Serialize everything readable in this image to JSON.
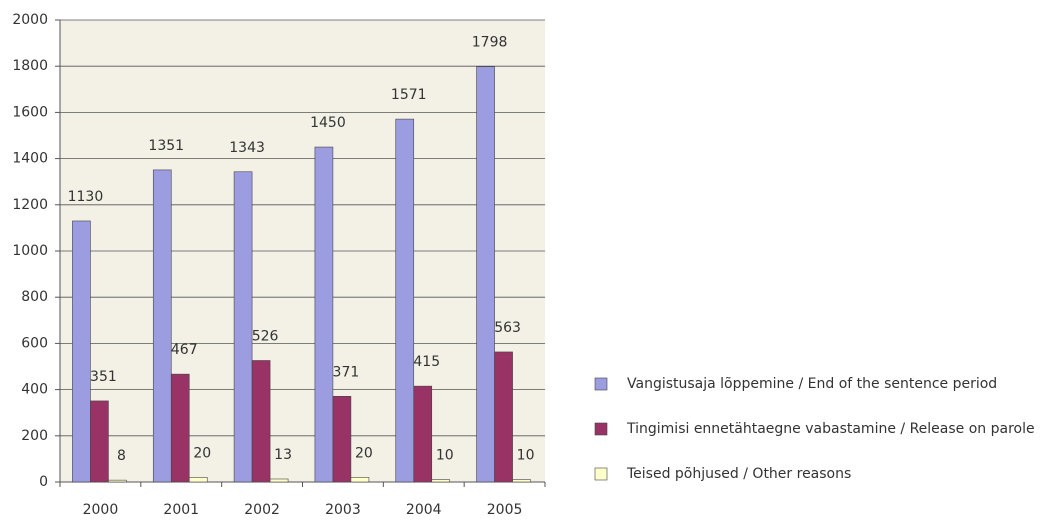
{
  "chart_data": {
    "type": "bar",
    "categories": [
      "2000",
      "2001",
      "2002",
      "2003",
      "2004",
      "2005"
    ],
    "series": [
      {
        "name": "Vangistusaja lõppemine / End of the sentence period",
        "color": "#9c9ce0",
        "values": [
          1130,
          1351,
          1343,
          1450,
          1571,
          1798
        ]
      },
      {
        "name": "Tingimisi ennetähtaegne vabastamine / Release on parole",
        "color": "#993366",
        "values": [
          351,
          467,
          526,
          371,
          415,
          563
        ]
      },
      {
        "name": "Teised põhjused / Other reasons",
        "color": "#ffffcc",
        "values": [
          8,
          20,
          13,
          20,
          10,
          10
        ]
      }
    ],
    "ylim": [
      0,
      2000
    ],
    "yticks": [
      0,
      200,
      400,
      600,
      800,
      1000,
      1200,
      1400,
      1600,
      1800,
      2000
    ],
    "grid": true,
    "legend": "right"
  }
}
